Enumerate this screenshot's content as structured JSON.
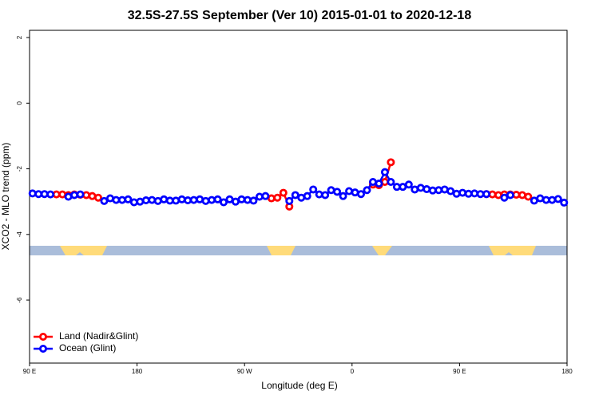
{
  "chart_data": {
    "type": "line",
    "title": "32.5S-27.5S September (Ver 10)   2015-01-01 to 2020-12-18",
    "xlabel": "Longitude (deg E)",
    "ylabel": "XCO2 - MLO trend (ppm)",
    "x": [
      92.5,
      97.5,
      102.5,
      107.5,
      112.5,
      117.5,
      122.5,
      127.5,
      132.5,
      137.5,
      142.5,
      147.5,
      152.5,
      157.5,
      162.5,
      167.5,
      172.5,
      177.5,
      182.5,
      187.5,
      192.5,
      197.5,
      202.5,
      207.5,
      212.5,
      217.5,
      222.5,
      227.5,
      232.5,
      237.5,
      242.5,
      247.5,
      252.5,
      257.5,
      262.5,
      267.5,
      272.5,
      277.5,
      282.5,
      287.5,
      292.5,
      297.5,
      302.5,
      307.5,
      312.5,
      317.5,
      322.5,
      327.5,
      332.5,
      337.5,
      342.5,
      347.5,
      352.5,
      357.5,
      362.5,
      367.5,
      372.5,
      377.5,
      382.5,
      387.5,
      392.5,
      397.5,
      402.5,
      407.5,
      412.5,
      417.5,
      422.5,
      427.5,
      432.5,
      437.5,
      442.5,
      447.5,
      452.5,
      457.5,
      462.5,
      467.5,
      472.5,
      477.5,
      482.5,
      487.5,
      492.5,
      497.5,
      502.5,
      507.5,
      512.5,
      517.5,
      522.5,
      527.5,
      532.5,
      537.5
    ],
    "series": [
      {
        "name": "Land (Nadir&Glint)",
        "color": "#ff0000",
        "values": [
          null,
          null,
          null,
          null,
          -2.78,
          -2.78,
          -2.8,
          -2.78,
          -2.79,
          -2.8,
          -2.83,
          -2.88,
          null,
          null,
          null,
          null,
          null,
          null,
          null,
          null,
          null,
          null,
          null,
          null,
          null,
          null,
          null,
          null,
          null,
          null,
          null,
          null,
          null,
          null,
          null,
          null,
          null,
          null,
          null,
          null,
          -2.9,
          -2.88,
          -2.73,
          -3.15,
          null,
          null,
          null,
          null,
          null,
          null,
          null,
          null,
          null,
          null,
          null,
          null,
          null,
          -2.48,
          -2.5,
          -2.4,
          -1.8,
          null,
          null,
          null,
          null,
          null,
          null,
          null,
          null,
          null,
          null,
          null,
          null,
          null,
          null,
          null,
          -2.77,
          -2.78,
          -2.8,
          -2.78,
          -2.78,
          -2.79,
          -2.8,
          -2.85,
          null,
          null,
          null,
          null,
          null,
          null
        ]
      },
      {
        "name": "Ocean (Glint)",
        "color": "#0000ff",
        "values": [
          -2.75,
          -2.77,
          -2.77,
          -2.78,
          null,
          null,
          -2.85,
          -2.8,
          -2.78,
          null,
          null,
          null,
          -2.98,
          -2.9,
          -2.95,
          -2.95,
          -2.93,
          -3.02,
          -3.0,
          -2.96,
          -2.95,
          -2.98,
          -2.93,
          -2.97,
          -2.97,
          -2.93,
          -2.96,
          -2.95,
          -2.93,
          -2.98,
          -2.95,
          -2.93,
          -3.02,
          -2.93,
          -3.0,
          -2.93,
          -2.95,
          -2.97,
          -2.85,
          -2.83,
          null,
          null,
          null,
          -2.98,
          -2.8,
          -2.88,
          -2.83,
          -2.63,
          -2.78,
          -2.8,
          -2.65,
          -2.7,
          -2.83,
          -2.68,
          -2.72,
          -2.77,
          -2.65,
          -2.4,
          -2.45,
          -2.1,
          -2.4,
          -2.55,
          -2.55,
          -2.48,
          -2.63,
          -2.58,
          -2.62,
          -2.66,
          -2.65,
          -2.63,
          -2.68,
          -2.76,
          -2.73,
          -2.76,
          -2.75,
          -2.77,
          -2.77,
          null,
          null,
          -2.88,
          -2.8,
          null,
          null,
          null,
          -2.97,
          -2.9,
          -2.95,
          -2.95,
          -2.92,
          -3.03
        ]
      }
    ],
    "xlim": [
      90,
      540
    ],
    "ylim": [
      -7.92,
      2.22
    ],
    "xticks": [
      {
        "value": 90,
        "label": "90 E"
      },
      180,
      {
        "value": 270,
        "label": "90 W"
      },
      {
        "value": 360,
        "label": "0"
      },
      {
        "value": 450,
        "label": "90 E"
      },
      {
        "value": 540,
        "label": "180"
      }
    ],
    "yticks": [
      -6,
      -4,
      -2,
      0,
      2
    ],
    "legend": "bottomleft"
  }
}
